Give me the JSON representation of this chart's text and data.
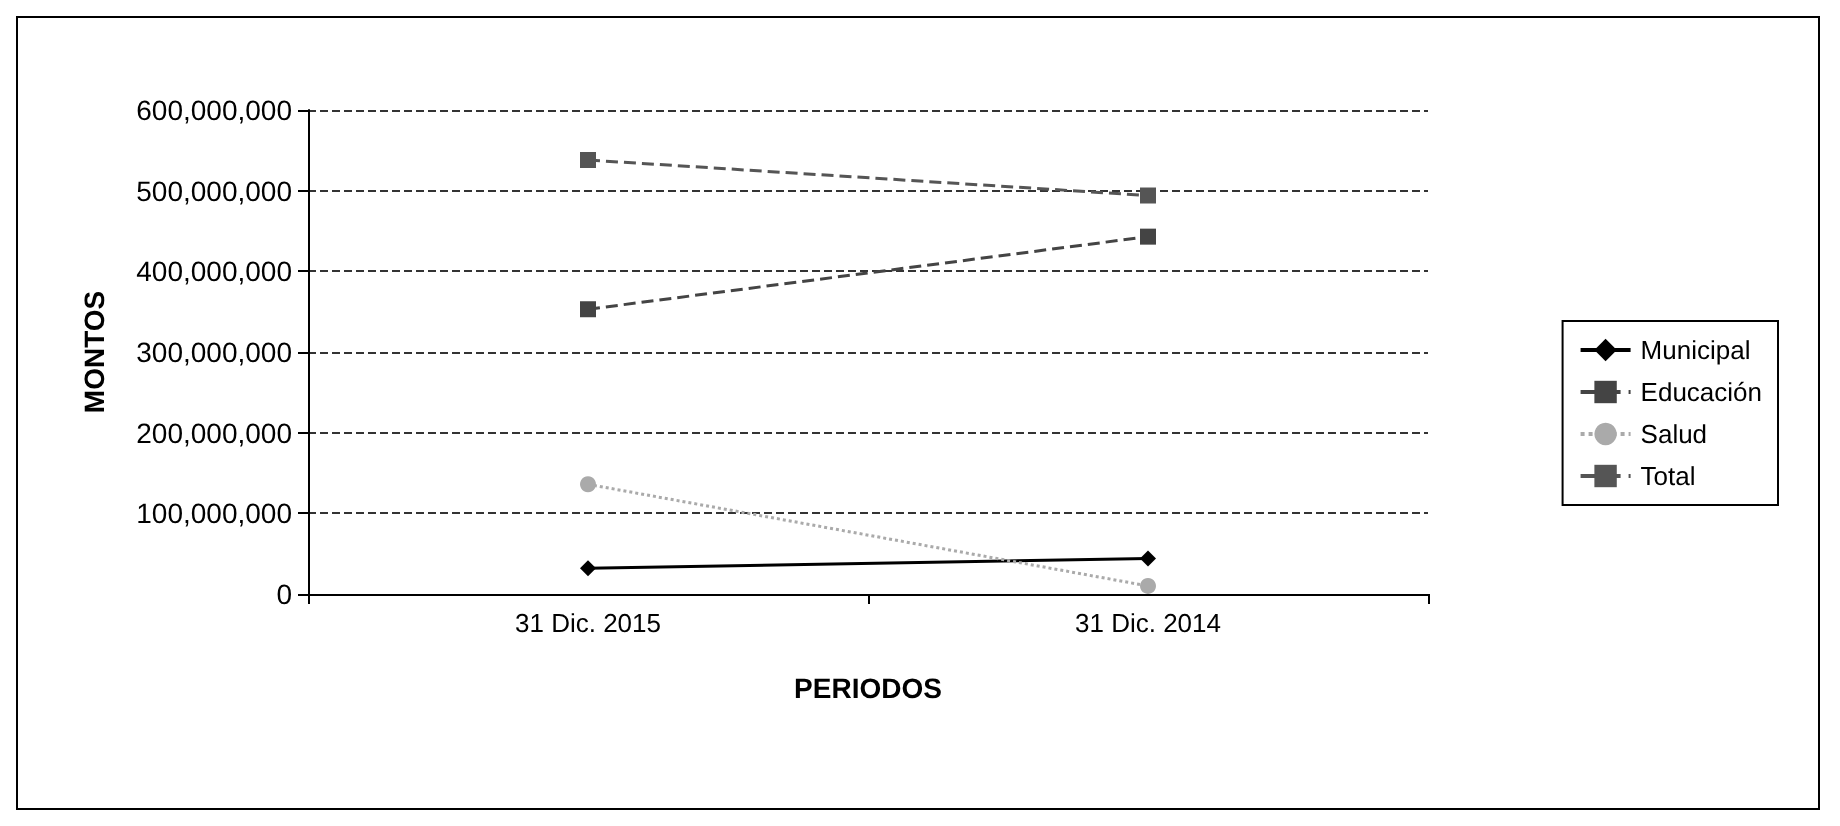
{
  "chart_data": {
    "type": "line",
    "xlabel": "PERIODOS",
    "ylabel": "MONTOS",
    "categories": [
      "31 Dic. 2015",
      "31 Dic. 2014"
    ],
    "series": [
      {
        "name": "Municipal",
        "color": "#000000",
        "values": [
          32000000,
          44000000
        ],
        "marker": "diamond",
        "line_style": "solid"
      },
      {
        "name": "Educación",
        "color": "#444444",
        "values": [
          353000000,
          443000000
        ],
        "marker": "square",
        "line_style": "dashed"
      },
      {
        "name": "Salud",
        "color": "#aaaaaa",
        "values": [
          136000000,
          10000000
        ],
        "marker": "circle",
        "line_style": "dotted"
      },
      {
        "name": "Total",
        "color": "#555555",
        "values": [
          538000000,
          494000000
        ],
        "marker": "square",
        "line_style": "dashed"
      }
    ],
    "ylim": [
      0,
      600000000
    ],
    "yticks": [
      0,
      {
        "value": 100000000,
        "label": "100,000,000"
      },
      {
        "value": 200000000,
        "label": "200,000,000"
      },
      {
        "value": 300000000,
        "label": "300,000,000"
      },
      {
        "value": 400000000,
        "label": "400,000,000"
      },
      {
        "value": 500000000,
        "label": "500,000,000"
      },
      {
        "value": 600000000,
        "label": "600,000,000"
      }
    ],
    "grid": "y",
    "legend": "right"
  }
}
